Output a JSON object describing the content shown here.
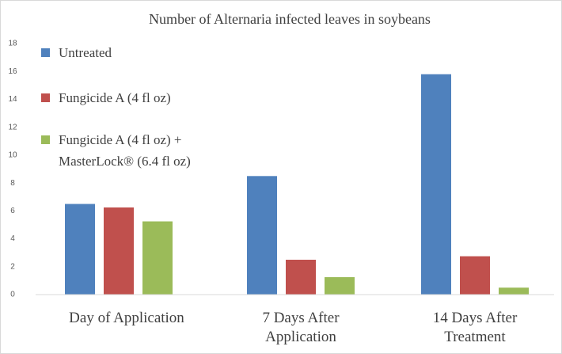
{
  "chart_data": {
    "type": "bar",
    "title": "Number of Alternaria infected leaves in soybeans",
    "categories": [
      "Day of Application",
      "7 Days After Application",
      "14 Days After Treatment"
    ],
    "series": [
      {
        "name": "Untreated",
        "color": "#4f81bd",
        "values": [
          6.5,
          8.5,
          15.8
        ]
      },
      {
        "name": "Fungicide A (4 fl oz)",
        "color": "#c0504d",
        "values": [
          6.25,
          2.5,
          2.75
        ]
      },
      {
        "name": "Fungicide A (4 fl oz) + MasterLock® (6.4 fl oz)",
        "color": "#9bbb59",
        "values": [
          5.25,
          1.25,
          0.5
        ]
      }
    ],
    "ylim": [
      0,
      18
    ],
    "yticks": [
      0,
      2,
      4,
      6,
      8,
      10,
      12,
      14,
      16,
      18
    ],
    "grid": false,
    "legend": "top-left"
  }
}
